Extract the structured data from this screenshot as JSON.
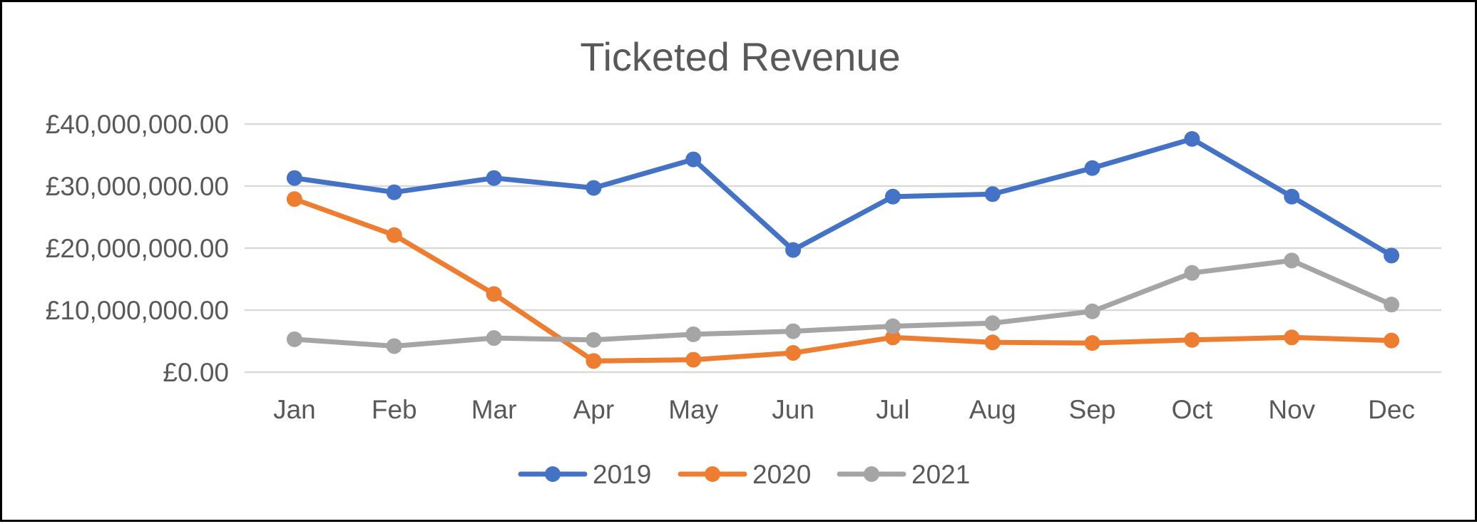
{
  "chart_data": {
    "type": "line",
    "title": "Ticketed Revenue",
    "xlabel": "",
    "ylabel": "",
    "categories": [
      "Jan",
      "Feb",
      "Mar",
      "Apr",
      "May",
      "Jun",
      "Jul",
      "Aug",
      "Sep",
      "Oct",
      "Nov",
      "Dec"
    ],
    "ylim": [
      0,
      40000000
    ],
    "yticks": [
      0,
      10000000,
      20000000,
      30000000,
      40000000
    ],
    "ytick_labels": [
      "£0.00",
      "£10,000,000.00",
      "£20,000,000.00",
      "£30,000,000.00",
      "£40,000,000.00"
    ],
    "grid": "horizontal",
    "legend": "bottom",
    "series": [
      {
        "name": "2019",
        "color": "#4472C4",
        "values": [
          31300000,
          29000000,
          31300000,
          29700000,
          34300000,
          19700000,
          28300000,
          28700000,
          32900000,
          37600000,
          28300000,
          18800000
        ]
      },
      {
        "name": "2020",
        "color": "#ED7D31",
        "values": [
          27900000,
          22100000,
          12600000,
          1800000,
          2000000,
          3100000,
          5600000,
          4800000,
          4700000,
          5200000,
          5600000,
          5100000
        ]
      },
      {
        "name": "2021",
        "color": "#A5A5A5",
        "values": [
          5300000,
          4200000,
          5500000,
          5200000,
          6100000,
          6600000,
          7400000,
          7900000,
          9800000,
          16000000,
          18000000,
          10900000
        ]
      }
    ]
  }
}
